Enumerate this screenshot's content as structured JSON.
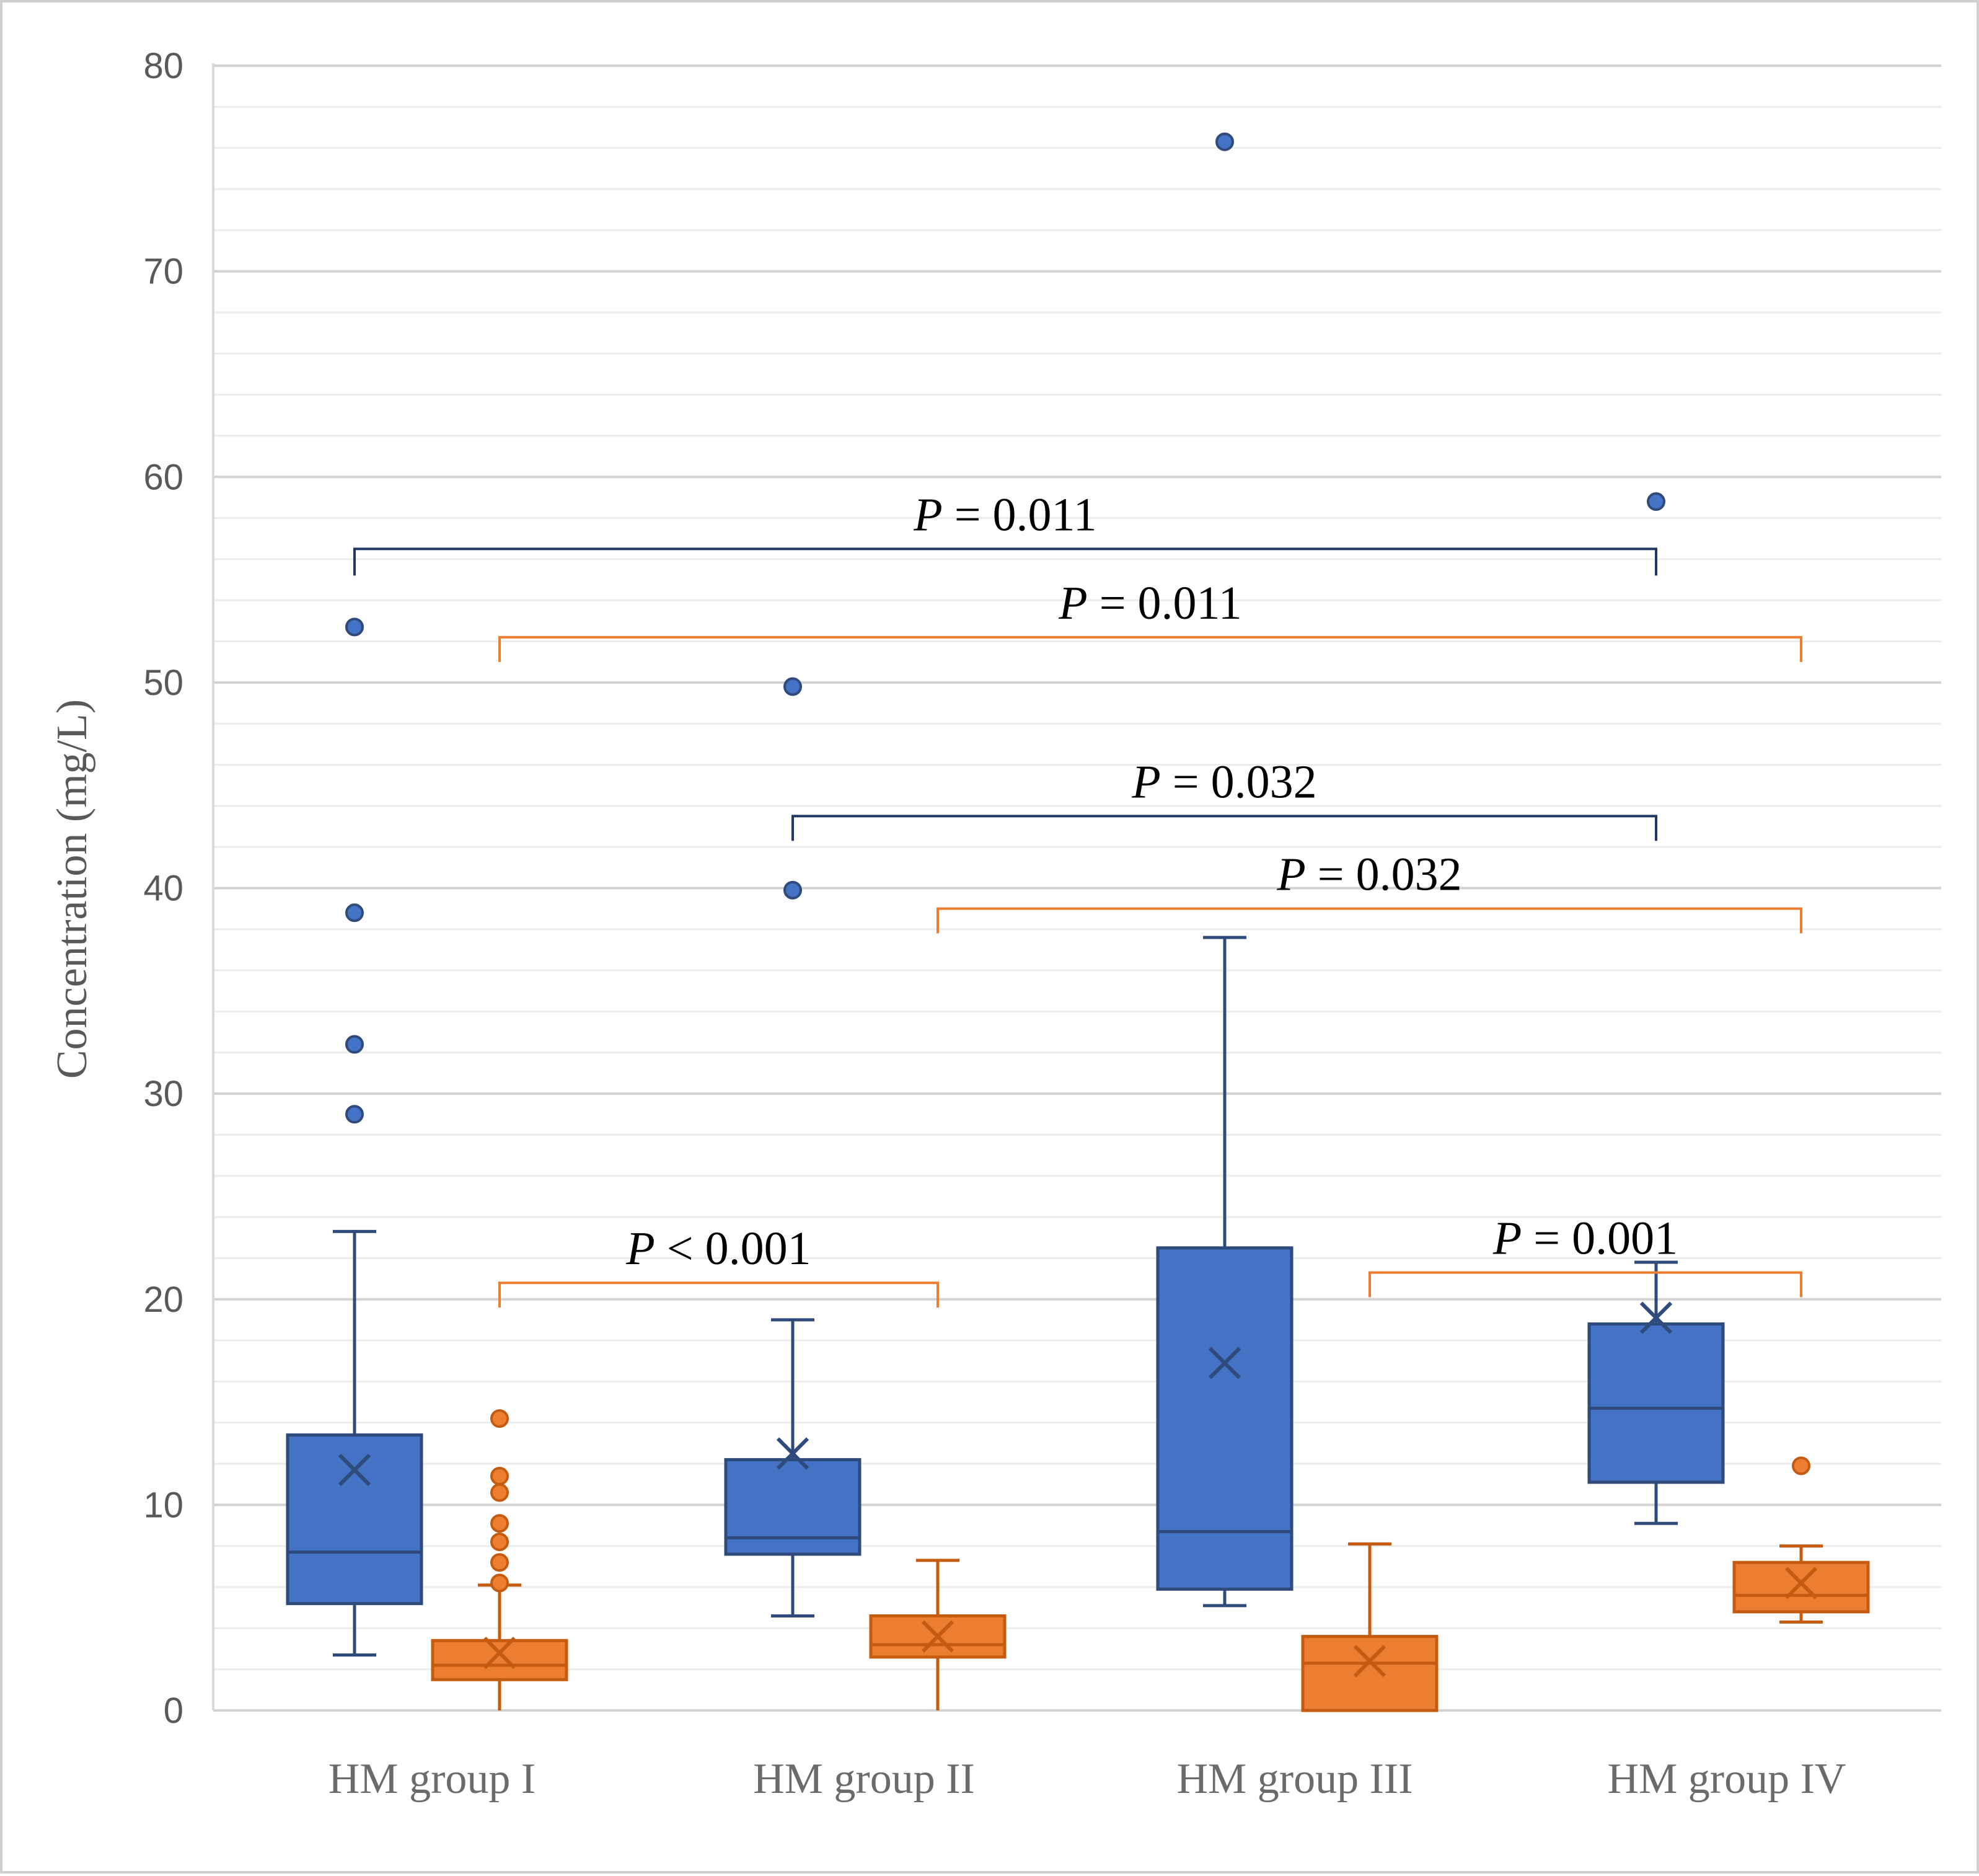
{
  "chart_data": {
    "type": "box",
    "ylabel": "Concentration (mg/L)",
    "xlabel": "",
    "ylim": [
      0,
      80
    ],
    "y_major_ticks": [
      0,
      10,
      20,
      30,
      40,
      50,
      60,
      70,
      80
    ],
    "y_minor_step": 2,
    "grid": true,
    "legend": "none",
    "categories": [
      "HM group I",
      "HM group II",
      "HM group III",
      "HM group IV"
    ],
    "series": [
      {
        "name": "series-blue",
        "color": "#4472c4",
        "edge_color": "#2f4b7c",
        "boxes": [
          {
            "category": "HM group I",
            "whisker_low": 2.7,
            "q1": 5.2,
            "median": 7.7,
            "q3": 13.4,
            "whisker_high": 23.3,
            "mean": 11.7,
            "outliers": [
              29.0,
              32.4,
              38.8,
              52.7
            ]
          },
          {
            "category": "HM group II",
            "whisker_low": 4.6,
            "q1": 7.6,
            "median": 8.4,
            "q3": 12.2,
            "whisker_high": 19.0,
            "mean": 12.5,
            "outliers": [
              39.9,
              49.8
            ]
          },
          {
            "category": "HM group III",
            "whisker_low": 5.1,
            "q1": 5.9,
            "median": 8.7,
            "q3": 22.5,
            "whisker_high": 37.6,
            "mean": 16.9,
            "outliers": [
              76.3
            ]
          },
          {
            "category": "HM group IV",
            "whisker_low": 9.1,
            "q1": 11.1,
            "median": 14.7,
            "q3": 18.8,
            "whisker_high": 21.8,
            "mean": 19.1,
            "outliers": [
              58.8
            ]
          }
        ]
      },
      {
        "name": "series-orange",
        "color": "#ed7d31",
        "edge_color": "#c55a11",
        "boxes": [
          {
            "category": "HM group I",
            "whisker_low": 0.0,
            "q1": 1.5,
            "median": 2.2,
            "q3": 3.4,
            "whisker_high": 6.1,
            "mean": 2.8,
            "outliers": [
              6.2,
              7.2,
              8.2,
              9.1,
              10.6,
              11.4,
              14.2
            ]
          },
          {
            "category": "HM group II",
            "whisker_low": 0.0,
            "q1": 2.6,
            "median": 3.2,
            "q3": 4.6,
            "whisker_high": 7.3,
            "mean": 3.6,
            "outliers": []
          },
          {
            "category": "HM group III",
            "whisker_low": 0.0,
            "q1": 0.0,
            "median": 2.3,
            "q3": 3.6,
            "whisker_high": 8.1,
            "mean": 2.4,
            "outliers": []
          },
          {
            "category": "HM group IV",
            "whisker_low": 4.3,
            "q1": 4.8,
            "median": 5.6,
            "q3": 7.2,
            "whisker_high": 8.0,
            "mean": 6.2,
            "outliers": [
              11.9
            ]
          }
        ]
      }
    ],
    "annotations": [
      {
        "id": "p1",
        "p_symbol": "P",
        "p_text": " = 0.011",
        "color": "#1f3864",
        "from": {
          "category": "HM group I",
          "series": "series-blue"
        },
        "to": {
          "category": "HM group IV",
          "series": "series-blue"
        },
        "y": 56.5,
        "tick_down": 1.3
      },
      {
        "id": "p2",
        "p_symbol": "P",
        "p_text": " = 0.011",
        "color": "#ed7d31",
        "from": {
          "category": "HM group I",
          "series": "series-orange"
        },
        "to": {
          "category": "HM group IV",
          "series": "series-orange"
        },
        "y": 52.2,
        "tick_down": 1.2
      },
      {
        "id": "p3",
        "p_symbol": "P",
        "p_text": " = 0.032",
        "color": "#1f3864",
        "from": {
          "category": "HM group II",
          "series": "series-blue"
        },
        "to": {
          "category": "HM group IV",
          "series": "series-blue"
        },
        "y": 43.5,
        "tick_down": 1.2
      },
      {
        "id": "p4",
        "p_symbol": "P",
        "p_text": " = 0.032",
        "color": "#ed7d31",
        "from": {
          "category": "HM group II",
          "series": "series-orange"
        },
        "to": {
          "category": "HM group IV",
          "series": "series-orange"
        },
        "y": 39.0,
        "tick_down": 1.2
      },
      {
        "id": "p5",
        "p_symbol": "P",
        "p_text": " < 0.001",
        "color": "#ed7d31",
        "from": {
          "category": "HM group I",
          "series": "series-orange"
        },
        "to": {
          "category": "HM group II",
          "series": "series-orange"
        },
        "y": 20.8,
        "tick_down": 1.2
      },
      {
        "id": "p6",
        "p_symbol": "P",
        "p_text": " = 0.001",
        "color": "#ed7d31",
        "from": {
          "category": "HM group III",
          "series": "series-orange"
        },
        "to": {
          "category": "HM group IV",
          "series": "series-orange"
        },
        "y": 21.3,
        "tick_down": 1.2
      }
    ]
  }
}
